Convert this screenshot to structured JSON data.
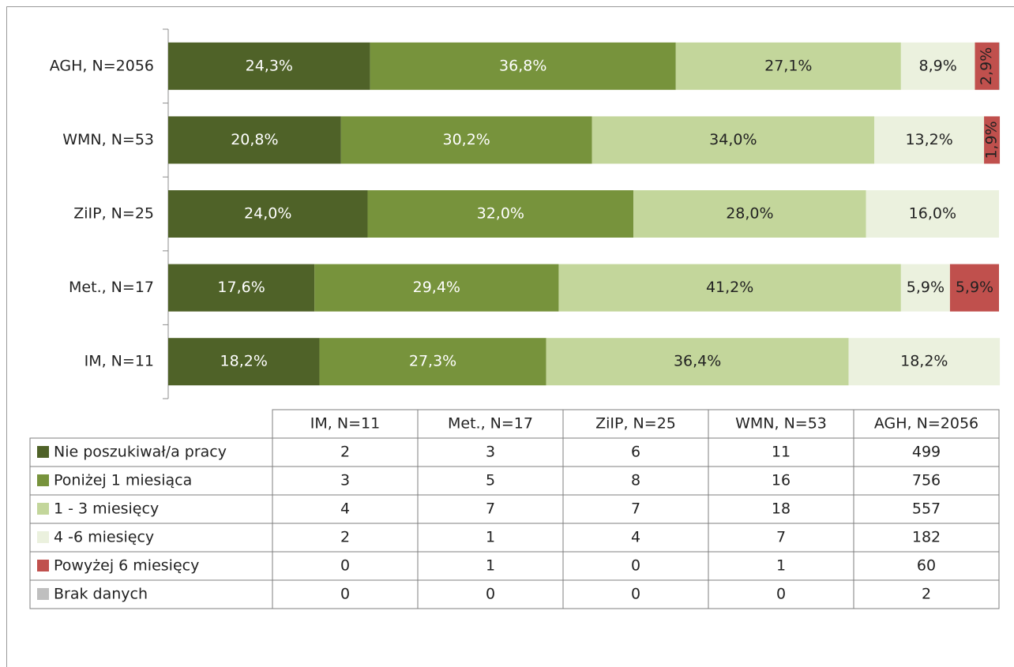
{
  "chart_data": {
    "type": "stacked_bar_100",
    "categories": [
      "IM, N=11",
      "Met., N=17",
      "ZiIP, N=25",
      "WMN, N=53",
      "AGH, N=2056"
    ],
    "xlim": [
      0,
      100
    ],
    "series": [
      {
        "name": "Nie poszukiwał/a pracy",
        "color": "#4f6228",
        "values": [
          18.2,
          17.6,
          24.0,
          20.8,
          24.3
        ],
        "value_labels": [
          "18,2%",
          "17,6%",
          "24,0%",
          "20,8%",
          "24,3%"
        ],
        "counts": [
          2,
          3,
          6,
          11,
          499
        ]
      },
      {
        "name": "Poniżej 1 miesiąca",
        "color": "#77933c",
        "values": [
          27.3,
          29.4,
          32.0,
          30.2,
          36.8
        ],
        "value_labels": [
          "27,3%",
          "29,4%",
          "32,0%",
          "30,2%",
          "36,8%"
        ],
        "counts": [
          3,
          5,
          8,
          16,
          756
        ]
      },
      {
        "name": "1 - 3 miesięcy",
        "color": "#c3d69b",
        "values": [
          36.4,
          41.2,
          28.0,
          34.0,
          27.1
        ],
        "value_labels": [
          "36,4%",
          "41,2%",
          "28,0%",
          "34,0%",
          "27,1%"
        ],
        "counts": [
          4,
          7,
          7,
          18,
          557
        ]
      },
      {
        "name": "4 -6 miesięcy",
        "color": "#ebf1de",
        "values": [
          18.2,
          5.9,
          16.0,
          13.2,
          8.9
        ],
        "value_labels": [
          "18,2%",
          "5,9%",
          "16,0%",
          "13,2%",
          "8,9%"
        ],
        "counts": [
          2,
          1,
          4,
          7,
          182
        ]
      },
      {
        "name": "Powyżej 6 miesięcy",
        "color": "#c0504d",
        "values": [
          0,
          5.9,
          0,
          1.9,
          2.9
        ],
        "value_labels": [
          null,
          "5,9%",
          null,
          "1,9%",
          "2,9%"
        ],
        "counts": [
          0,
          1,
          0,
          1,
          60
        ]
      },
      {
        "name": "Brak danych",
        "color": "#bfbfbf",
        "values": [
          0,
          0,
          0,
          0,
          0.1
        ],
        "value_labels": [
          null,
          null,
          null,
          null,
          null
        ],
        "counts": [
          0,
          0,
          0,
          0,
          2
        ]
      }
    ]
  }
}
